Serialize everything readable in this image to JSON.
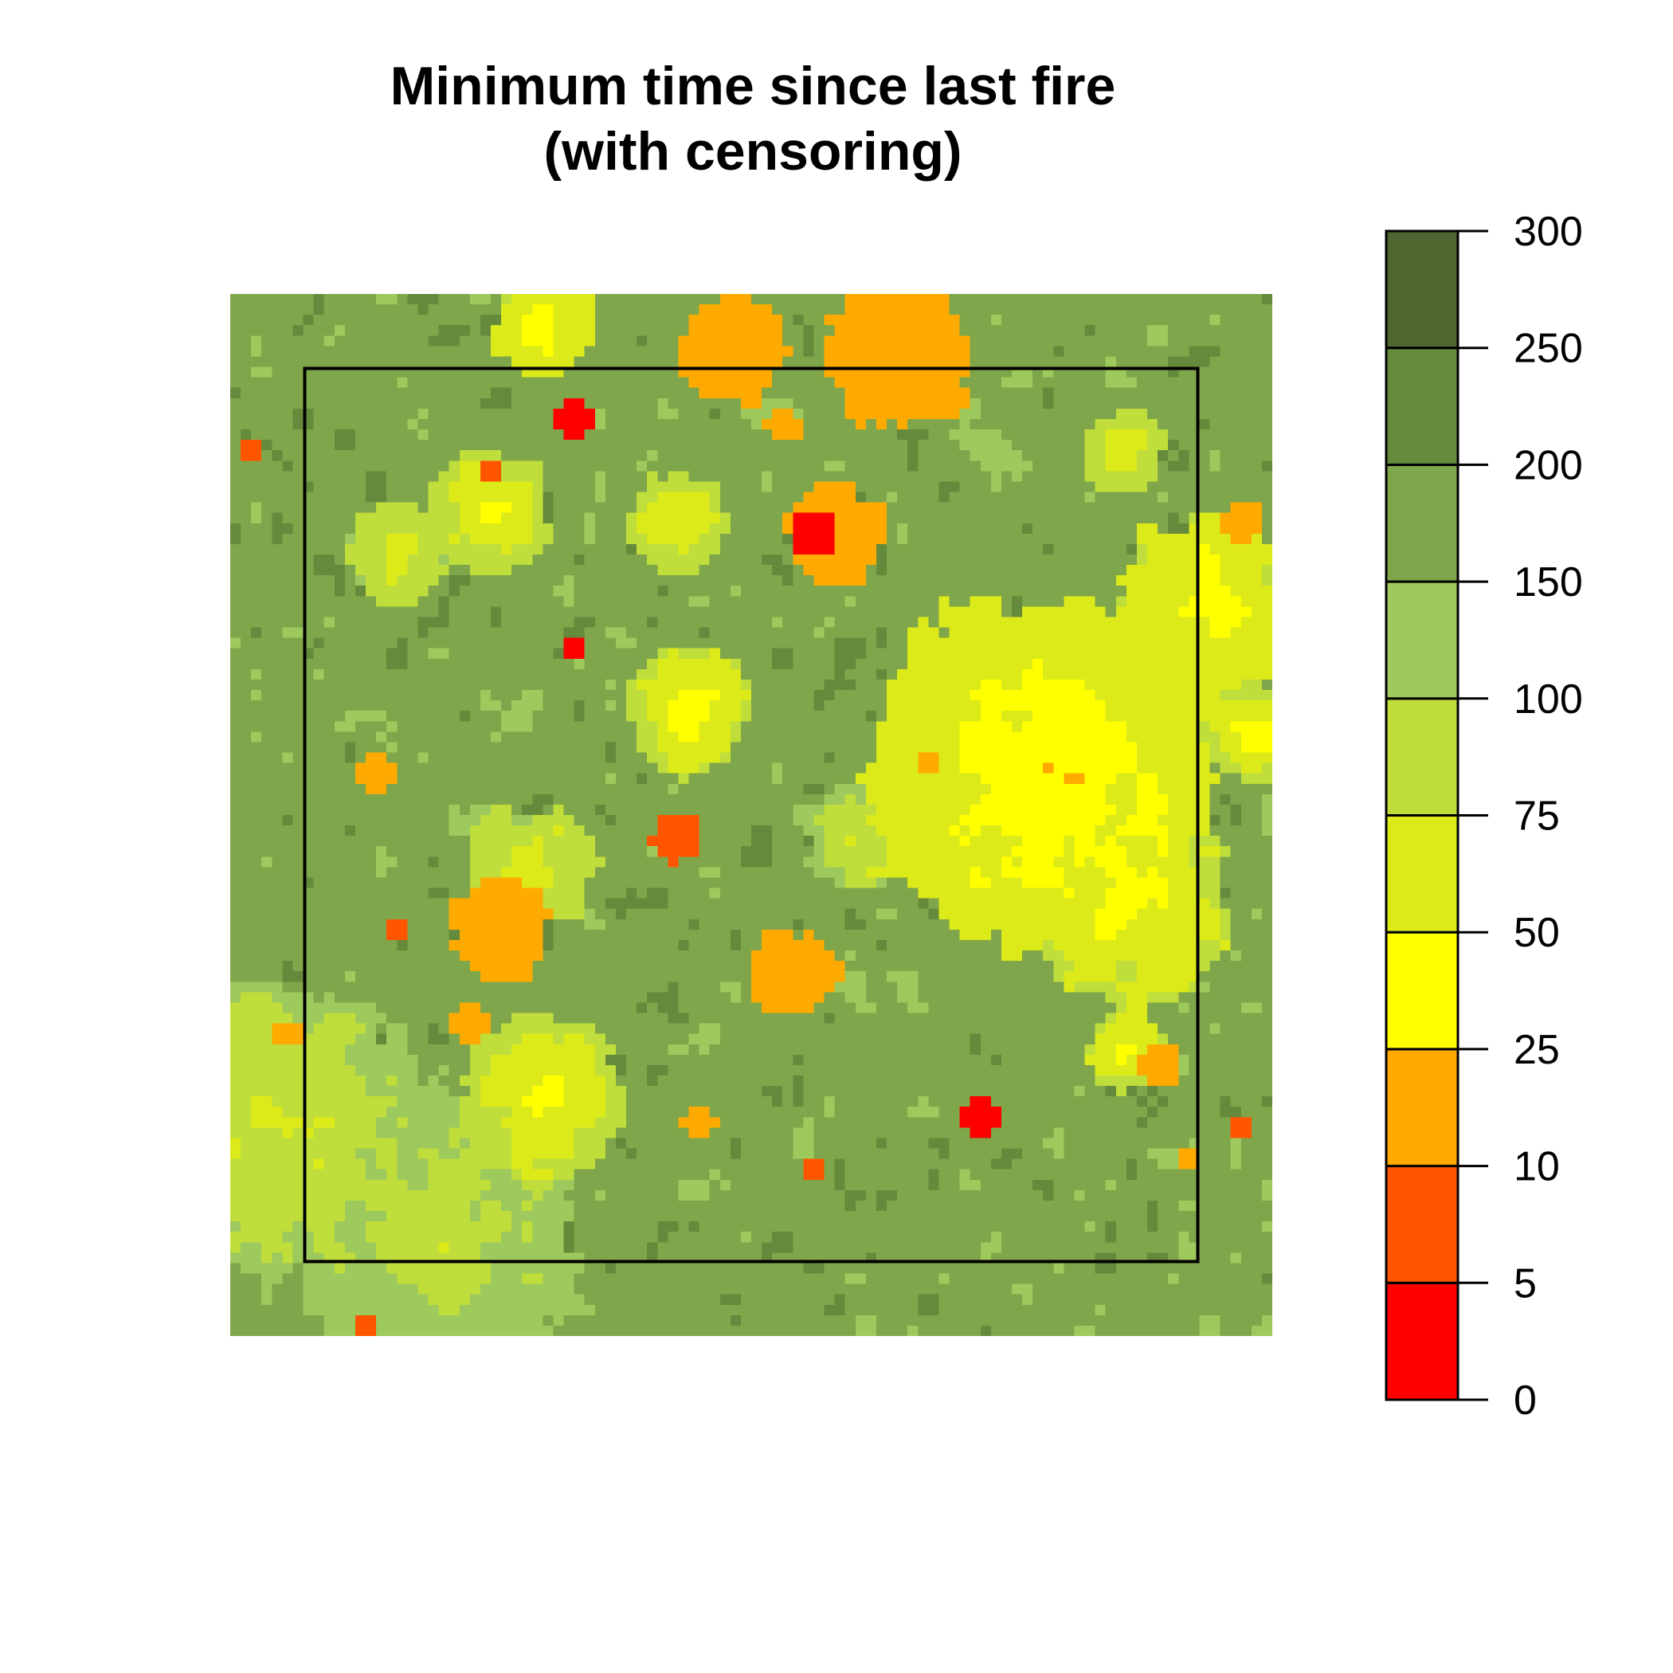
{
  "chart_data": {
    "type": "heatmap",
    "title_line1": "Minimum time since last fire",
    "title_line2": "(with censoring)",
    "xlabel": "",
    "ylabel": "",
    "grid": false,
    "legend": {
      "placement": "right",
      "breaks": [
        0,
        5,
        10,
        25,
        50,
        75,
        100,
        150,
        200,
        250,
        300
      ],
      "labels": [
        "0",
        "5",
        "10",
        "25",
        "50",
        "75",
        "100",
        "150",
        "200",
        "250",
        "300"
      ],
      "colors": [
        "#ff0000",
        "#ff5500",
        "#ffaa00",
        "#ffff00",
        "#dcea1a",
        "#bfdd3b",
        "#9ec95c",
        "#7fa64a",
        "#668a3c",
        "#4f6630"
      ]
    },
    "grid_size": 100,
    "censoring_box": true,
    "field": {
      "base_mean": 175,
      "noise_amplitude": 70,
      "young_patches": [
        {
          "x": 0.78,
          "y": 0.46,
          "r": 0.17,
          "value": 30
        },
        {
          "x": 0.94,
          "y": 0.3,
          "r": 0.09,
          "value": 35
        },
        {
          "x": 0.86,
          "y": 0.58,
          "r": 0.1,
          "value": 40
        },
        {
          "x": 0.05,
          "y": 0.8,
          "r": 0.14,
          "value": 70
        },
        {
          "x": 0.2,
          "y": 0.9,
          "r": 0.14,
          "value": 80
        },
        {
          "x": 0.3,
          "y": 0.77,
          "r": 0.08,
          "value": 45
        },
        {
          "x": 0.44,
          "y": 0.4,
          "r": 0.06,
          "value": 40
        },
        {
          "x": 0.25,
          "y": 0.21,
          "r": 0.06,
          "value": 45
        },
        {
          "x": 0.43,
          "y": 0.22,
          "r": 0.05,
          "value": 50
        },
        {
          "x": 0.29,
          "y": 0.55,
          "r": 0.06,
          "value": 60
        },
        {
          "x": 0.16,
          "y": 0.25,
          "r": 0.05,
          "value": 60
        },
        {
          "x": 0.6,
          "y": 0.52,
          "r": 0.05,
          "value": 70
        },
        {
          "x": 0.86,
          "y": 0.73,
          "r": 0.04,
          "value": 40
        },
        {
          "x": 0.86,
          "y": 0.15,
          "r": 0.04,
          "value": 50
        },
        {
          "x": 0.98,
          "y": 0.42,
          "r": 0.05,
          "value": 40
        },
        {
          "x": 0.3,
          "y": 0.03,
          "r": 0.05,
          "value": 30
        }
      ],
      "orange_patches": [
        {
          "x": 0.48,
          "y": 0.05,
          "r": 0.05
        },
        {
          "x": 0.64,
          "y": 0.06,
          "r": 0.07
        },
        {
          "x": 0.58,
          "y": 0.23,
          "r": 0.05
        },
        {
          "x": 0.26,
          "y": 0.61,
          "r": 0.05
        },
        {
          "x": 0.54,
          "y": 0.65,
          "r": 0.04
        },
        {
          "x": 0.14,
          "y": 0.46,
          "r": 0.02
        },
        {
          "x": 0.23,
          "y": 0.7,
          "r": 0.02
        },
        {
          "x": 0.06,
          "y": 0.71,
          "r": 0.015
        },
        {
          "x": 0.89,
          "y": 0.74,
          "r": 0.02
        },
        {
          "x": 0.45,
          "y": 0.8,
          "r": 0.015
        },
        {
          "x": 0.97,
          "y": 0.22,
          "r": 0.02
        },
        {
          "x": 0.53,
          "y": 0.13,
          "r": 0.015
        },
        {
          "x": 0.67,
          "y": 0.45,
          "r": 0.015
        },
        {
          "x": 0.92,
          "y": 0.83,
          "r": 0.012
        }
      ],
      "red_patches": [
        {
          "x": 0.56,
          "y": 0.23,
          "r": 0.025,
          "value": 2
        },
        {
          "x": 0.33,
          "y": 0.12,
          "r": 0.02,
          "value": 2
        },
        {
          "x": 0.72,
          "y": 0.79,
          "r": 0.02,
          "value": 2
        },
        {
          "x": 0.43,
          "y": 0.52,
          "r": 0.025,
          "value": 7
        },
        {
          "x": 0.02,
          "y": 0.15,
          "r": 0.01,
          "value": 7
        },
        {
          "x": 0.25,
          "y": 0.17,
          "r": 0.01,
          "value": 7
        },
        {
          "x": 0.33,
          "y": 0.34,
          "r": 0.008,
          "value": 2
        },
        {
          "x": 0.16,
          "y": 0.61,
          "r": 0.01,
          "value": 7
        },
        {
          "x": 0.56,
          "y": 0.84,
          "r": 0.01,
          "value": 7
        },
        {
          "x": 0.97,
          "y": 0.8,
          "r": 0.01,
          "value": 7
        },
        {
          "x": 0.13,
          "y": 0.99,
          "r": 0.01,
          "value": 7
        },
        {
          "x": 0.89,
          "y": 0.26,
          "r": 0.006,
          "value": 7
        }
      ]
    }
  }
}
